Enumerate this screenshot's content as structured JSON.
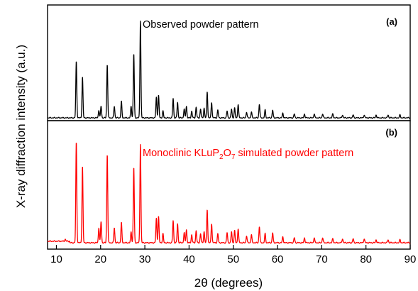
{
  "chart_data": [
    {
      "type": "line",
      "panel_tag": "(a)",
      "annotation": "Observed powder pattern",
      "color": "#000000",
      "xlabel": "2θ (degrees)",
      "ylabel": "X-ray diffraction intensity (a.u.)",
      "xlim": [
        8,
        90
      ],
      "ylim": [
        0,
        100
      ],
      "xticks": [
        10,
        20,
        30,
        40,
        50,
        60,
        70,
        80,
        90
      ],
      "y_tick_labels_shown": false,
      "grid": false,
      "peaks": [
        {
          "x": 14.5,
          "y": 58
        },
        {
          "x": 15.9,
          "y": 42
        },
        {
          "x": 19.6,
          "y": 8
        },
        {
          "x": 20.1,
          "y": 12
        },
        {
          "x": 21.5,
          "y": 55
        },
        {
          "x": 23.1,
          "y": 12
        },
        {
          "x": 24.7,
          "y": 17
        },
        {
          "x": 26.9,
          "y": 12
        },
        {
          "x": 27.5,
          "y": 66
        },
        {
          "x": 29.0,
          "y": 100
        },
        {
          "x": 32.6,
          "y": 21
        },
        {
          "x": 33.1,
          "y": 23
        },
        {
          "x": 34.1,
          "y": 7
        },
        {
          "x": 36.4,
          "y": 20
        },
        {
          "x": 37.4,
          "y": 16
        },
        {
          "x": 38.9,
          "y": 9
        },
        {
          "x": 39.4,
          "y": 12
        },
        {
          "x": 40.6,
          "y": 7
        },
        {
          "x": 41.6,
          "y": 11
        },
        {
          "x": 42.6,
          "y": 9
        },
        {
          "x": 43.4,
          "y": 10
        },
        {
          "x": 44.1,
          "y": 27
        },
        {
          "x": 45.1,
          "y": 16
        },
        {
          "x": 46.5,
          "y": 8
        },
        {
          "x": 48.6,
          "y": 7
        },
        {
          "x": 49.6,
          "y": 9
        },
        {
          "x": 50.3,
          "y": 10
        },
        {
          "x": 51.1,
          "y": 14
        },
        {
          "x": 53.0,
          "y": 6
        },
        {
          "x": 54.1,
          "y": 6
        },
        {
          "x": 55.9,
          "y": 14
        },
        {
          "x": 57.2,
          "y": 8
        },
        {
          "x": 58.9,
          "y": 8
        },
        {
          "x": 61.2,
          "y": 5
        },
        {
          "x": 63.8,
          "y": 4
        },
        {
          "x": 66.1,
          "y": 4
        },
        {
          "x": 68.3,
          "y": 4
        },
        {
          "x": 70.2,
          "y": 4
        },
        {
          "x": 72.5,
          "y": 4
        },
        {
          "x": 74.7,
          "y": 3
        },
        {
          "x": 77.1,
          "y": 3
        },
        {
          "x": 79.6,
          "y": 3
        },
        {
          "x": 82.3,
          "y": 3
        },
        {
          "x": 85.0,
          "y": 3
        },
        {
          "x": 87.7,
          "y": 3
        }
      ]
    },
    {
      "type": "line",
      "panel_tag": "(b)",
      "annotation": {
        "base": "Monoclinic KLuP",
        "sub1": "2",
        "mid": "O",
        "sub2": "7",
        "tail": " simulated powder pattern"
      },
      "color": "#ff0000",
      "xlabel": "2θ (degrees)",
      "ylabel": "X-ray diffraction intensity (a.u.)",
      "xlim": [
        8,
        90
      ],
      "ylim": [
        0,
        100
      ],
      "xticks": [
        10,
        20,
        30,
        40,
        50,
        60,
        70,
        80,
        90
      ],
      "y_tick_labels_shown": false,
      "grid": false,
      "peaks": [
        {
          "x": 12.0,
          "y": 2
        },
        {
          "x": 14.5,
          "y": 100
        },
        {
          "x": 15.9,
          "y": 76
        },
        {
          "x": 19.6,
          "y": 15
        },
        {
          "x": 20.1,
          "y": 21
        },
        {
          "x": 21.5,
          "y": 88
        },
        {
          "x": 23.1,
          "y": 15
        },
        {
          "x": 24.7,
          "y": 20
        },
        {
          "x": 26.9,
          "y": 11
        },
        {
          "x": 27.5,
          "y": 75
        },
        {
          "x": 29.0,
          "y": 98
        },
        {
          "x": 32.6,
          "y": 24
        },
        {
          "x": 33.1,
          "y": 26
        },
        {
          "x": 34.1,
          "y": 9
        },
        {
          "x": 36.4,
          "y": 22
        },
        {
          "x": 37.4,
          "y": 19
        },
        {
          "x": 38.9,
          "y": 10
        },
        {
          "x": 39.4,
          "y": 13
        },
        {
          "x": 40.6,
          "y": 8
        },
        {
          "x": 41.6,
          "y": 12
        },
        {
          "x": 42.6,
          "y": 9
        },
        {
          "x": 43.4,
          "y": 11
        },
        {
          "x": 44.1,
          "y": 33
        },
        {
          "x": 45.1,
          "y": 19
        },
        {
          "x": 46.5,
          "y": 9
        },
        {
          "x": 48.6,
          "y": 10
        },
        {
          "x": 49.6,
          "y": 11
        },
        {
          "x": 50.3,
          "y": 12
        },
        {
          "x": 51.1,
          "y": 14
        },
        {
          "x": 53.0,
          "y": 7
        },
        {
          "x": 54.1,
          "y": 8
        },
        {
          "x": 55.9,
          "y": 16
        },
        {
          "x": 57.2,
          "y": 9
        },
        {
          "x": 58.9,
          "y": 10
        },
        {
          "x": 61.2,
          "y": 6
        },
        {
          "x": 63.8,
          "y": 5
        },
        {
          "x": 66.1,
          "y": 5
        },
        {
          "x": 68.3,
          "y": 5
        },
        {
          "x": 70.2,
          "y": 5
        },
        {
          "x": 72.5,
          "y": 4
        },
        {
          "x": 74.7,
          "y": 4
        },
        {
          "x": 77.1,
          "y": 4
        },
        {
          "x": 79.6,
          "y": 4
        },
        {
          "x": 82.3,
          "y": 3
        },
        {
          "x": 85.0,
          "y": 3
        },
        {
          "x": 87.7,
          "y": 3
        }
      ]
    }
  ]
}
